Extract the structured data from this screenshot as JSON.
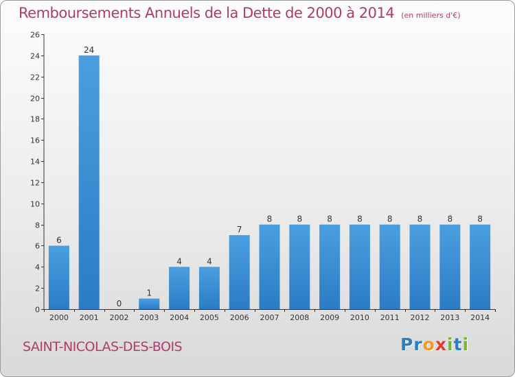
{
  "header": {
    "title": "Remboursements Annuels de la Dette de 2000 à 2014",
    "unit": "(en milliers d'€)"
  },
  "footer": {
    "commune": "SAINT-NICOLAS-DES-BOIS",
    "logo": "Proxiti",
    "logo_letters": [
      {
        "ch": "P",
        "color": "#2a7fc2"
      },
      {
        "ch": "r",
        "color": "#2a7fc2"
      },
      {
        "ch": "o",
        "color": "#f39a1e"
      },
      {
        "ch": "x",
        "color": "#e23a2c"
      },
      {
        "ch": "i",
        "color": "#74b834"
      },
      {
        "ch": "t",
        "color": "#2a7fc2"
      },
      {
        "ch": "i",
        "color": "#74b834"
      }
    ]
  },
  "chart_data": {
    "type": "bar",
    "title": "Remboursements Annuels de la Dette de 2000 à 2014",
    "categories": [
      "2000",
      "2001",
      "2002",
      "2003",
      "2004",
      "2005",
      "2006",
      "2007",
      "2008",
      "2009",
      "2010",
      "2011",
      "2012",
      "2013",
      "2014"
    ],
    "values": [
      6,
      24,
      0,
      1,
      4,
      4,
      7,
      8,
      8,
      8,
      8,
      8,
      8,
      8,
      8
    ],
    "ylim": [
      0,
      26
    ],
    "yticks": [
      0,
      2,
      4,
      6,
      8,
      10,
      12,
      14,
      16,
      18,
      20,
      22,
      24,
      26
    ],
    "grid": false,
    "legend": "none",
    "colors": {
      "bar": "#4a9fe0",
      "bar_dark": "#2b7cc4",
      "text": "#b03a6a",
      "axis": "#333333"
    }
  }
}
